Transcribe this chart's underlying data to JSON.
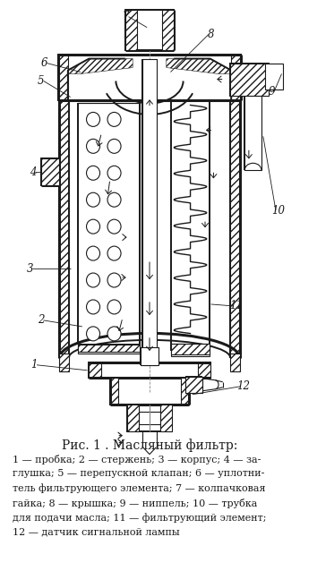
{
  "title": "Рис. 1 . Масляный фильтр:",
  "caption_lines": [
    "1 — пробка; 2 — стержень; 3 — корпус; 4 — за-",
    "глушка; 5 — перепускной клапан; 6 — уплотни-",
    "тель фильтрующего элемента; 7 — колпачковая",
    "гайка; 8 — крышка; 9 — ниппель; 10 — трубка",
    "для подачи масла; 11 — фильтрующий элемент;",
    "12 — датчик сигнальной лампы"
  ],
  "bg_color": "#ffffff",
  "line_color": "#1a1a1a",
  "hatch_color": "#444444",
  "figsize": [
    3.54,
    6.38
  ],
  "dpi": 100
}
